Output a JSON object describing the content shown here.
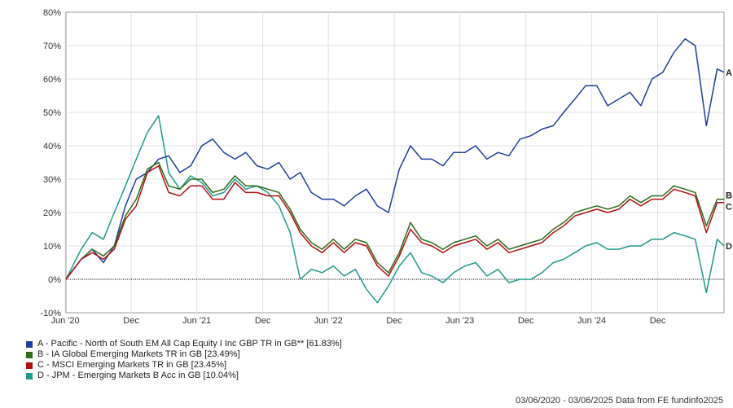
{
  "chart_data": {
    "type": "line",
    "y_tick_labels": [
      "80%",
      "70%",
      "60%",
      "50%",
      "40%",
      "30%",
      "20%",
      "10%",
      "0%",
      "-10%"
    ],
    "ylim": [
      -10,
      80
    ],
    "x_tick_labels": [
      "Jun '20",
      "Dec",
      "Jun '21",
      "Dec",
      "Jun '22",
      "Dec",
      "Jun '23",
      "Dec",
      "Jun '24",
      "Dec"
    ],
    "x_tick_dates": [
      "2020-06",
      "2020-12",
      "2021-06",
      "2021-12",
      "2022-06",
      "2022-12",
      "2023-06",
      "2023-12",
      "2024-06",
      "2024-12"
    ],
    "xlim": [
      "2020-06-03",
      "2025-06-03"
    ],
    "grid": true,
    "series": [
      {
        "id": "A",
        "name": "A - Pacific - North of South EM All Cap Equity I Inc GBP TR in GB** [61.83%]",
        "color": "#1f3f9f",
        "x": [
          "2020-06-03",
          "2020-07",
          "2020-08",
          "2020-09",
          "2020-10",
          "2020-11",
          "2020-12",
          "2021-01",
          "2021-02",
          "2021-03",
          "2021-04",
          "2021-05",
          "2021-06",
          "2021-07",
          "2021-08",
          "2021-09",
          "2021-10",
          "2021-11",
          "2021-12",
          "2022-01",
          "2022-02",
          "2022-03",
          "2022-04",
          "2022-05",
          "2022-06",
          "2022-07",
          "2022-08",
          "2022-09",
          "2022-10",
          "2022-11",
          "2022-12",
          "2023-01",
          "2023-02",
          "2023-03",
          "2023-04",
          "2023-05",
          "2023-06",
          "2023-07",
          "2023-08",
          "2023-09",
          "2023-10",
          "2023-11",
          "2023-12",
          "2024-01",
          "2024-02",
          "2024-03",
          "2024-04",
          "2024-05",
          "2024-06",
          "2024-07",
          "2024-08",
          "2024-09",
          "2024-10",
          "2024-11",
          "2024-12",
          "2025-01",
          "2025-02",
          "2025-03",
          "2025-04",
          "2025-05",
          "2025-06-03"
        ],
        "values": [
          0,
          6,
          9,
          5,
          10,
          22,
          30,
          32,
          36,
          37,
          32,
          34,
          40,
          42,
          38,
          36,
          38,
          34,
          33,
          35,
          30,
          32,
          26,
          24,
          24,
          22,
          25,
          27,
          22,
          20,
          33,
          40,
          36,
          36,
          34,
          38,
          38,
          40,
          36,
          38,
          37,
          42,
          43,
          45,
          46,
          50,
          54,
          58,
          58,
          52,
          54,
          56,
          52,
          60,
          62,
          68,
          72,
          70,
          46,
          63,
          62
        ]
      },
      {
        "id": "B",
        "name": "B - IA Global Emerging Markets TR in GB [23.49%]",
        "color": "#2f6b1a",
        "x": [
          "2020-06-03",
          "2020-07",
          "2020-08",
          "2020-09",
          "2020-10",
          "2020-11",
          "2020-12",
          "2021-01",
          "2021-02",
          "2021-03",
          "2021-04",
          "2021-05",
          "2021-06",
          "2021-07",
          "2021-08",
          "2021-09",
          "2021-10",
          "2021-11",
          "2021-12",
          "2022-01",
          "2022-02",
          "2022-03",
          "2022-04",
          "2022-05",
          "2022-06",
          "2022-07",
          "2022-08",
          "2022-09",
          "2022-10",
          "2022-11",
          "2022-12",
          "2023-01",
          "2023-02",
          "2023-03",
          "2023-04",
          "2023-05",
          "2023-06",
          "2023-07",
          "2023-08",
          "2023-09",
          "2023-10",
          "2023-11",
          "2023-12",
          "2024-01",
          "2024-02",
          "2024-03",
          "2024-04",
          "2024-05",
          "2024-06",
          "2024-07",
          "2024-08",
          "2024-09",
          "2024-10",
          "2024-11",
          "2024-12",
          "2025-01",
          "2025-02",
          "2025-03",
          "2025-04",
          "2025-05",
          "2025-06-03"
        ],
        "values": [
          0,
          6,
          9,
          7,
          10,
          19,
          24,
          33,
          35,
          28,
          27,
          30,
          30,
          26,
          27,
          31,
          28,
          28,
          27,
          26,
          21,
          15,
          11,
          9,
          12,
          9,
          12,
          11,
          5,
          2,
          8,
          17,
          12,
          11,
          9,
          11,
          12,
          13,
          10,
          12,
          9,
          10,
          11,
          12,
          15,
          17,
          20,
          21,
          22,
          21,
          22,
          25,
          23,
          25,
          25,
          28,
          27,
          26,
          16,
          24,
          24
        ]
      },
      {
        "id": "C",
        "name": "C - MSCI Emerging Markets TR in GB [23.45%]",
        "color": "#b01212",
        "x": [
          "2020-06-03",
          "2020-07",
          "2020-08",
          "2020-09",
          "2020-10",
          "2020-11",
          "2020-12",
          "2021-01",
          "2021-02",
          "2021-03",
          "2021-04",
          "2021-05",
          "2021-06",
          "2021-07",
          "2021-08",
          "2021-09",
          "2021-10",
          "2021-11",
          "2021-12",
          "2022-01",
          "2022-02",
          "2022-03",
          "2022-04",
          "2022-05",
          "2022-06",
          "2022-07",
          "2022-08",
          "2022-09",
          "2022-10",
          "2022-11",
          "2022-12",
          "2023-01",
          "2023-02",
          "2023-03",
          "2023-04",
          "2023-05",
          "2023-06",
          "2023-07",
          "2023-08",
          "2023-09",
          "2023-10",
          "2023-11",
          "2023-12",
          "2024-01",
          "2024-02",
          "2024-03",
          "2024-04",
          "2024-05",
          "2024-06",
          "2024-07",
          "2024-08",
          "2024-09",
          "2024-10",
          "2024-11",
          "2024-12",
          "2025-01",
          "2025-02",
          "2025-03",
          "2025-04",
          "2025-05",
          "2025-06-03"
        ],
        "values": [
          0,
          6,
          8,
          6,
          9,
          18,
          22,
          32,
          34,
          26,
          25,
          28,
          28,
          24,
          24,
          29,
          26,
          26,
          25,
          25,
          20,
          14,
          10,
          8,
          11,
          8,
          11,
          10,
          4,
          1,
          7,
          15,
          11,
          10,
          8,
          10,
          11,
          12,
          9,
          11,
          8,
          9,
          10,
          11,
          14,
          16,
          19,
          20,
          21,
          20,
          21,
          24,
          22,
          24,
          24,
          27,
          26,
          25,
          14,
          23,
          23
        ]
      },
      {
        "id": "D",
        "name": "D - JPM - Emerging Markets B Acc in GB [10.04%]",
        "color": "#1f9a8a",
        "x": [
          "2020-06-03",
          "2020-07",
          "2020-08",
          "2020-09",
          "2020-10",
          "2020-11",
          "2020-12",
          "2021-01",
          "2021-02",
          "2021-03",
          "2021-04",
          "2021-05",
          "2021-06",
          "2021-07",
          "2021-08",
          "2021-09",
          "2021-10",
          "2021-11",
          "2021-12",
          "2022-01",
          "2022-02",
          "2022-03",
          "2022-04",
          "2022-05",
          "2022-06",
          "2022-07",
          "2022-08",
          "2022-09",
          "2022-10",
          "2022-11",
          "2022-12",
          "2023-01",
          "2023-02",
          "2023-03",
          "2023-04",
          "2023-05",
          "2023-06",
          "2023-07",
          "2023-08",
          "2023-09",
          "2023-10",
          "2023-11",
          "2023-12",
          "2024-01",
          "2024-02",
          "2024-03",
          "2024-04",
          "2024-05",
          "2024-06",
          "2024-07",
          "2024-08",
          "2024-09",
          "2024-10",
          "2024-11",
          "2024-12",
          "2025-01",
          "2025-02",
          "2025-03",
          "2025-04",
          "2025-05",
          "2025-06-03"
        ],
        "values": [
          0,
          9,
          14,
          12,
          20,
          28,
          36,
          44,
          49,
          32,
          27,
          31,
          29,
          25,
          26,
          30,
          27,
          28,
          26,
          22,
          14,
          0,
          3,
          2,
          4,
          1,
          3,
          -3,
          -7,
          -2,
          4,
          8,
          2,
          1,
          -1,
          2,
          4,
          5,
          1,
          3,
          -1,
          0,
          0,
          2,
          5,
          6,
          8,
          10,
          11,
          9,
          9,
          10,
          10,
          12,
          12,
          14,
          13,
          12,
          -4,
          12,
          10
        ]
      }
    ],
    "footer": "03/06/2020 - 03/06/2025 Data from FE fundinfo2025"
  }
}
